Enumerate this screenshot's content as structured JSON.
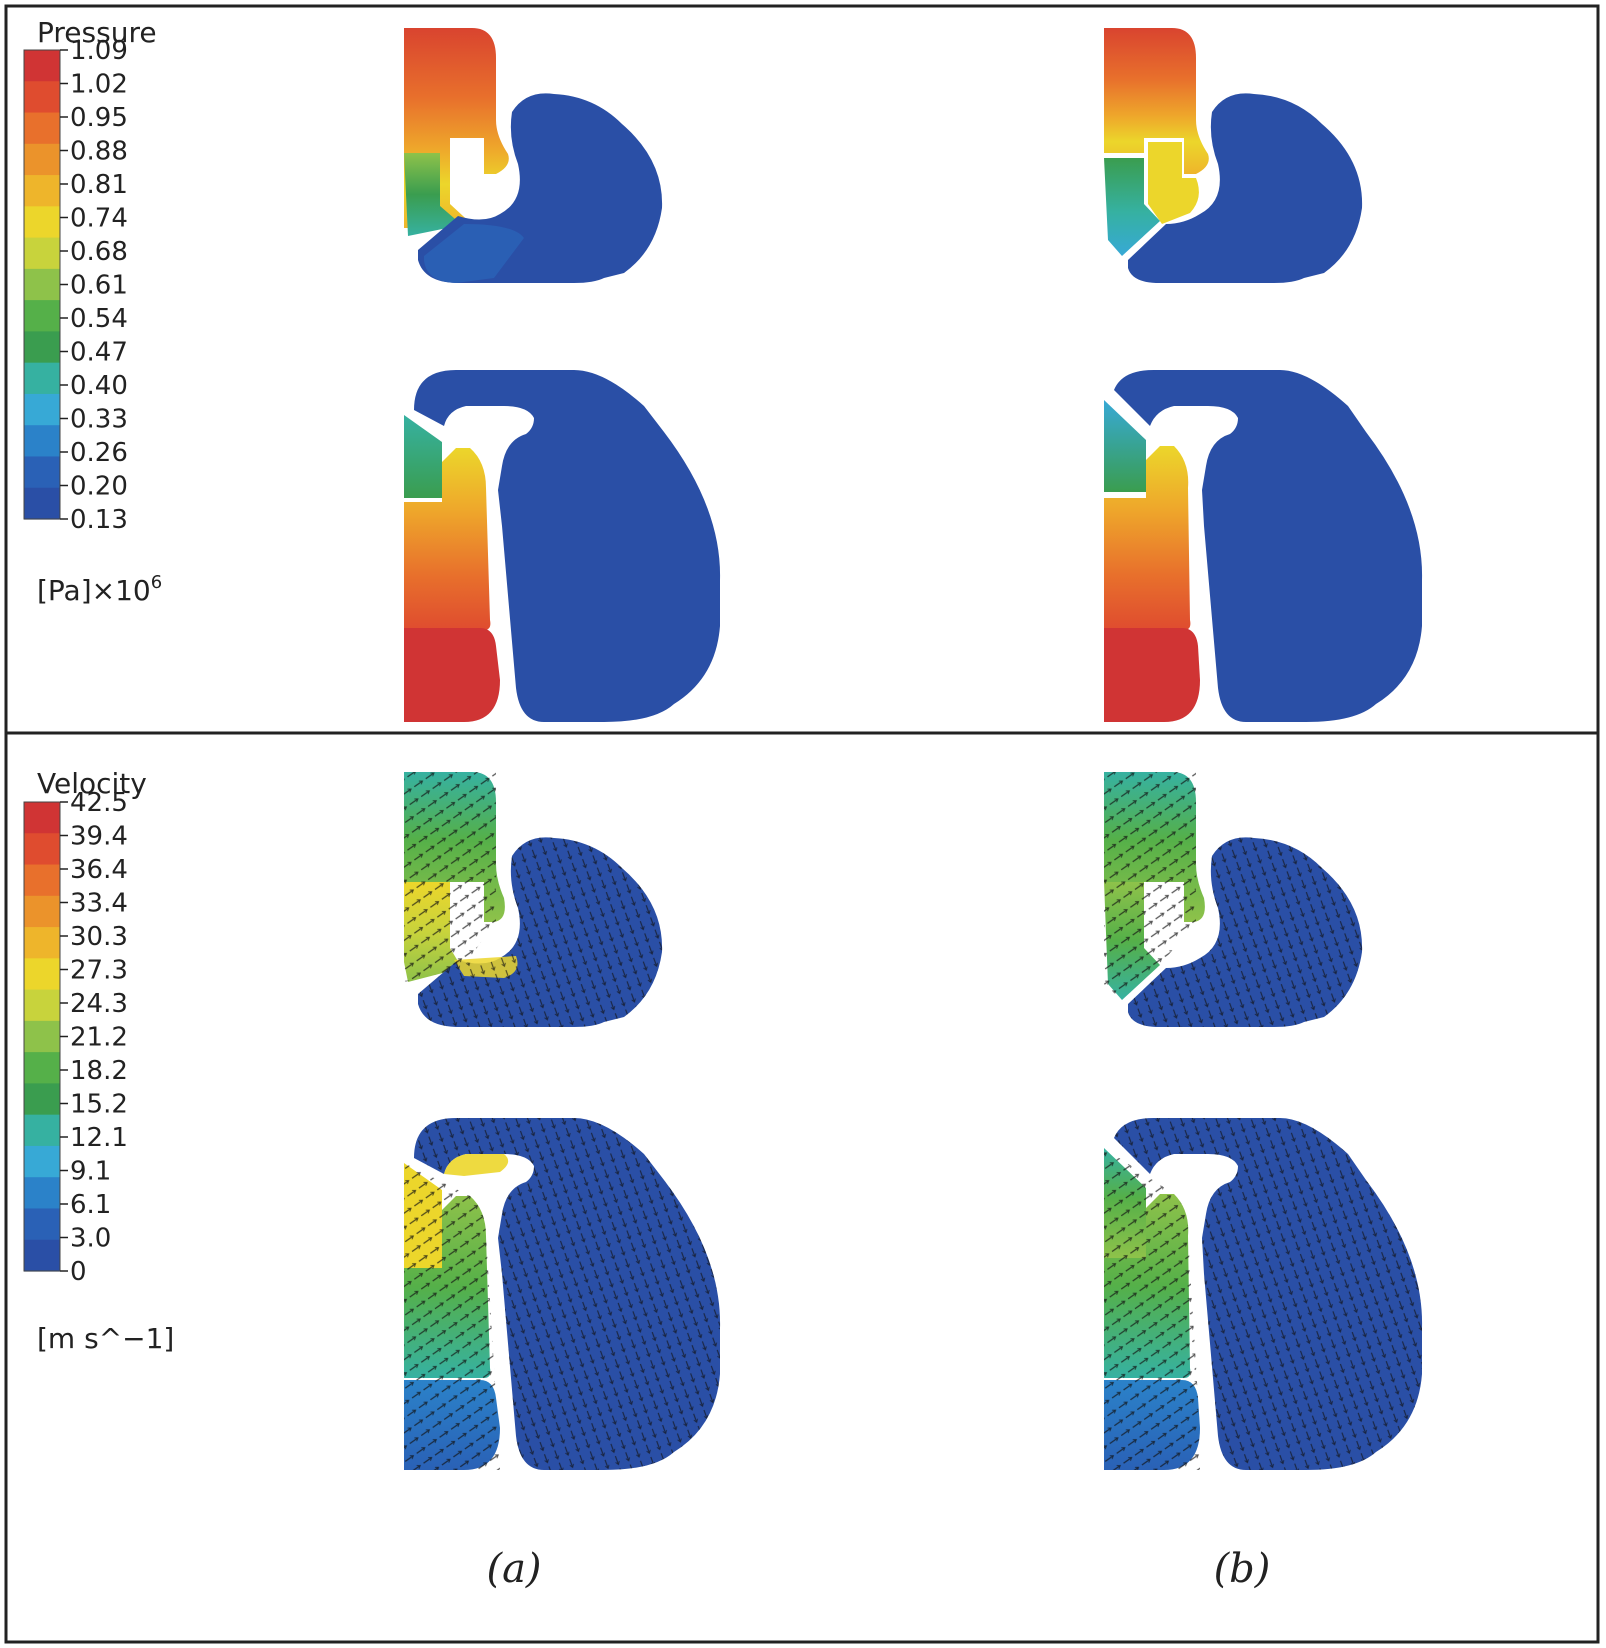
{
  "pressure_legend": {
    "title": "Pressure",
    "ticks": [
      "1.09",
      "1.02",
      "0.95",
      "0.88",
      "0.81",
      "0.74",
      "0.68",
      "0.61",
      "0.54",
      "0.47",
      "0.40",
      "0.33",
      "0.26",
      "0.20",
      "0.13"
    ],
    "unit": "[Pa]×10",
    "unit_exp": "6"
  },
  "velocity_legend": {
    "title": "Velocity",
    "ticks": [
      "42.5",
      "39.4",
      "36.4",
      "33.4",
      "30.3",
      "27.3",
      "24.3",
      "21.2",
      "18.2",
      "15.2",
      "12.1",
      "9.1",
      "6.1",
      "3.0",
      "0"
    ],
    "unit": "[m s^−1]"
  },
  "captions": {
    "a": "(a)",
    "b": "(b)"
  },
  "colors": {
    "scale": [
      "#d03434",
      "#df4c2f",
      "#e8702c",
      "#eb932b",
      "#eeb52b",
      "#ecd62b",
      "#c8d33c",
      "#8ec24a",
      "#55b049",
      "#3a9d4f",
      "#36b1a1",
      "#37a9d6",
      "#2b82c9",
      "#2a61b6",
      "#2a4fa6"
    ],
    "outline": "#222222",
    "arrow": "#111111"
  }
}
